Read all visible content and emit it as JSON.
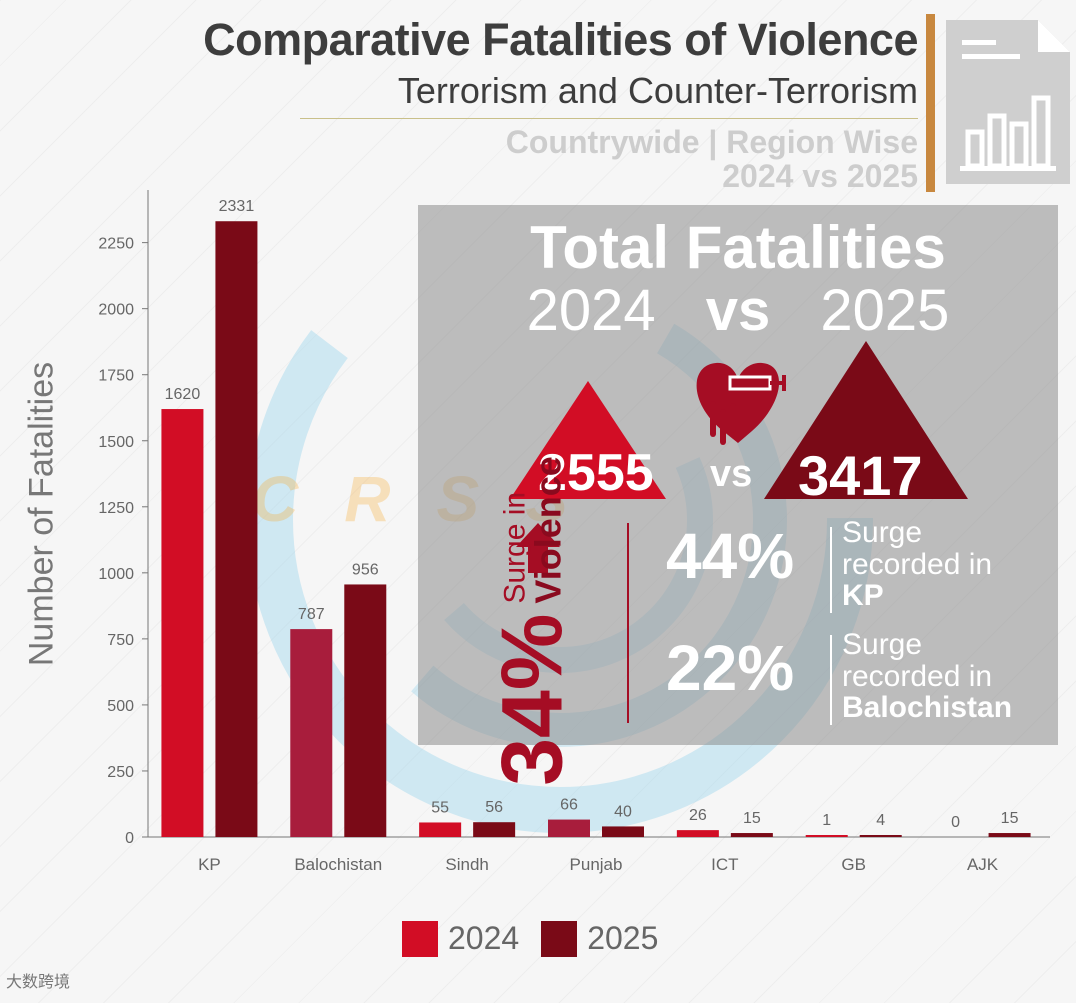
{
  "header": {
    "title": "Comparative Fatalities of Violence",
    "subtitle": "Terrorism and Counter-Terrorism",
    "scope": "Countrywide | Region Wise",
    "period": "2024 vs 2025"
  },
  "colors": {
    "series_2024": "#d20d25",
    "series_2025": "#7a0a17",
    "balochistan_2024": "#a81d3c",
    "punjab_2024": "#a81d3c",
    "accent": "#c8883f",
    "watermark_blue": "#9fd8ee"
  },
  "icons": [
    "report-chart-icon",
    "heart-syringe-icon",
    "arrow-up-icon"
  ],
  "chart_data": {
    "type": "bar",
    "title": "",
    "xlabel": "",
    "ylabel": "Number of Fatalities",
    "ylim": [
      0,
      2400
    ],
    "yticks": [
      0,
      250,
      500,
      750,
      1000,
      1250,
      1500,
      1750,
      2000,
      2250
    ],
    "categories": [
      "KP",
      "Balochistan",
      "Sindh",
      "Punjab",
      "ICT",
      "GB",
      "AJK"
    ],
    "series": [
      {
        "name": "2024",
        "values": [
          1620,
          787,
          55,
          66,
          26,
          1,
          0
        ]
      },
      {
        "name": "2025",
        "values": [
          2331,
          956,
          56,
          40,
          15,
          4,
          15
        ]
      }
    ],
    "legend": "bottom"
  },
  "summary": {
    "heading": "Total Fatalities",
    "year_a": "2024",
    "vs": "vs",
    "year_b": "2025",
    "total_2024": "2555",
    "total_2025": "3417",
    "overall_surge_pct": "34%",
    "overall_surge_label_1": "Surge in",
    "overall_surge_label_2": "Violence",
    "stats": [
      {
        "pct": "44%",
        "line1": "Surge",
        "line2": "recorded in",
        "region": "KP"
      },
      {
        "pct": "22%",
        "line1": "Surge",
        "line2": "recorded in",
        "region": "Balochistan"
      }
    ]
  },
  "watermark": "CRSS",
  "footer": "大数跨境"
}
